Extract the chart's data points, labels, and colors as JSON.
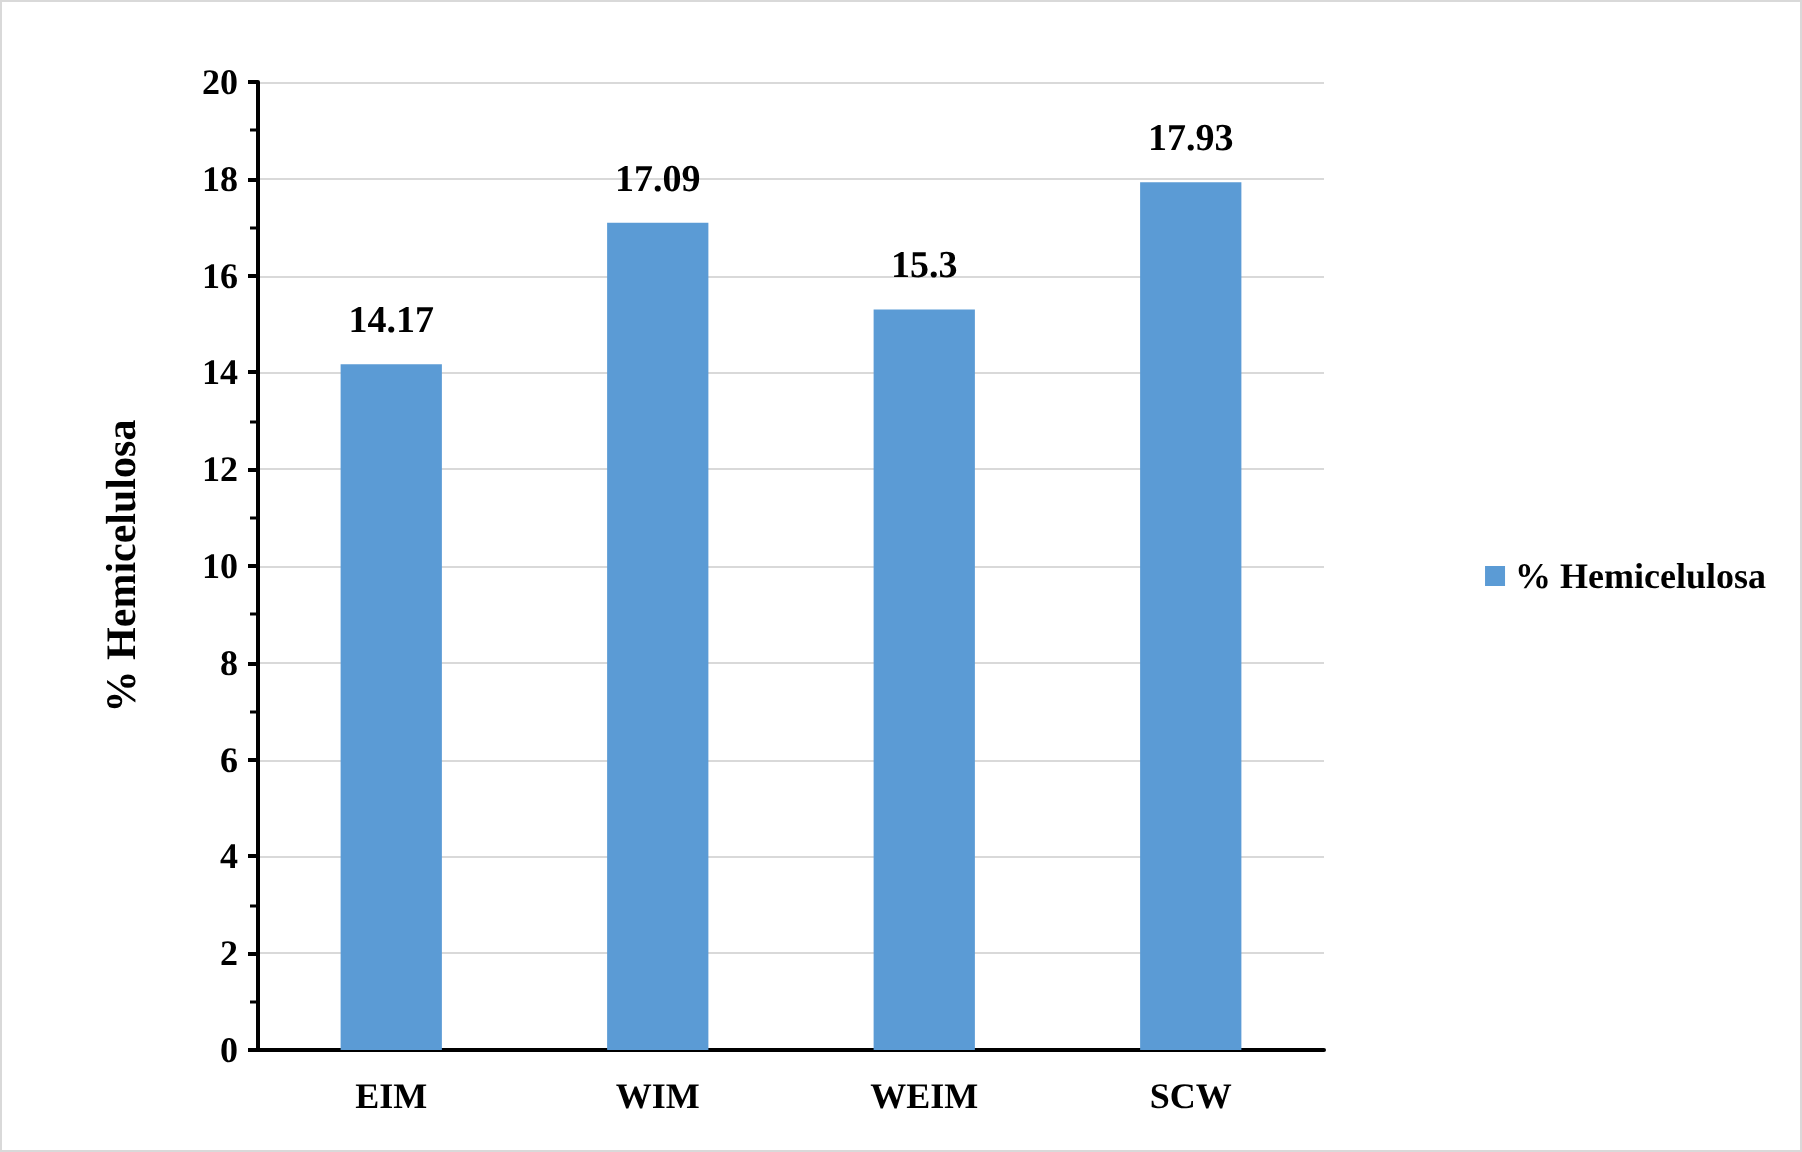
{
  "chart_data": {
    "type": "bar",
    "ylabel": "% Hemicelulosa",
    "categories": [
      "EIM",
      "WIM",
      "WEIM",
      "SCW"
    ],
    "series": [
      {
        "name": "% Hemicelulosa",
        "color": "#5b9bd5",
        "values": [
          14.17,
          17.09,
          15.3,
          17.93
        ]
      }
    ],
    "ylim": [
      0,
      20
    ],
    "yticks": [
      0,
      2,
      4,
      6,
      8,
      10,
      12,
      14,
      16,
      18,
      20
    ],
    "grid": "y",
    "legend": "right",
    "data_labels": true
  }
}
